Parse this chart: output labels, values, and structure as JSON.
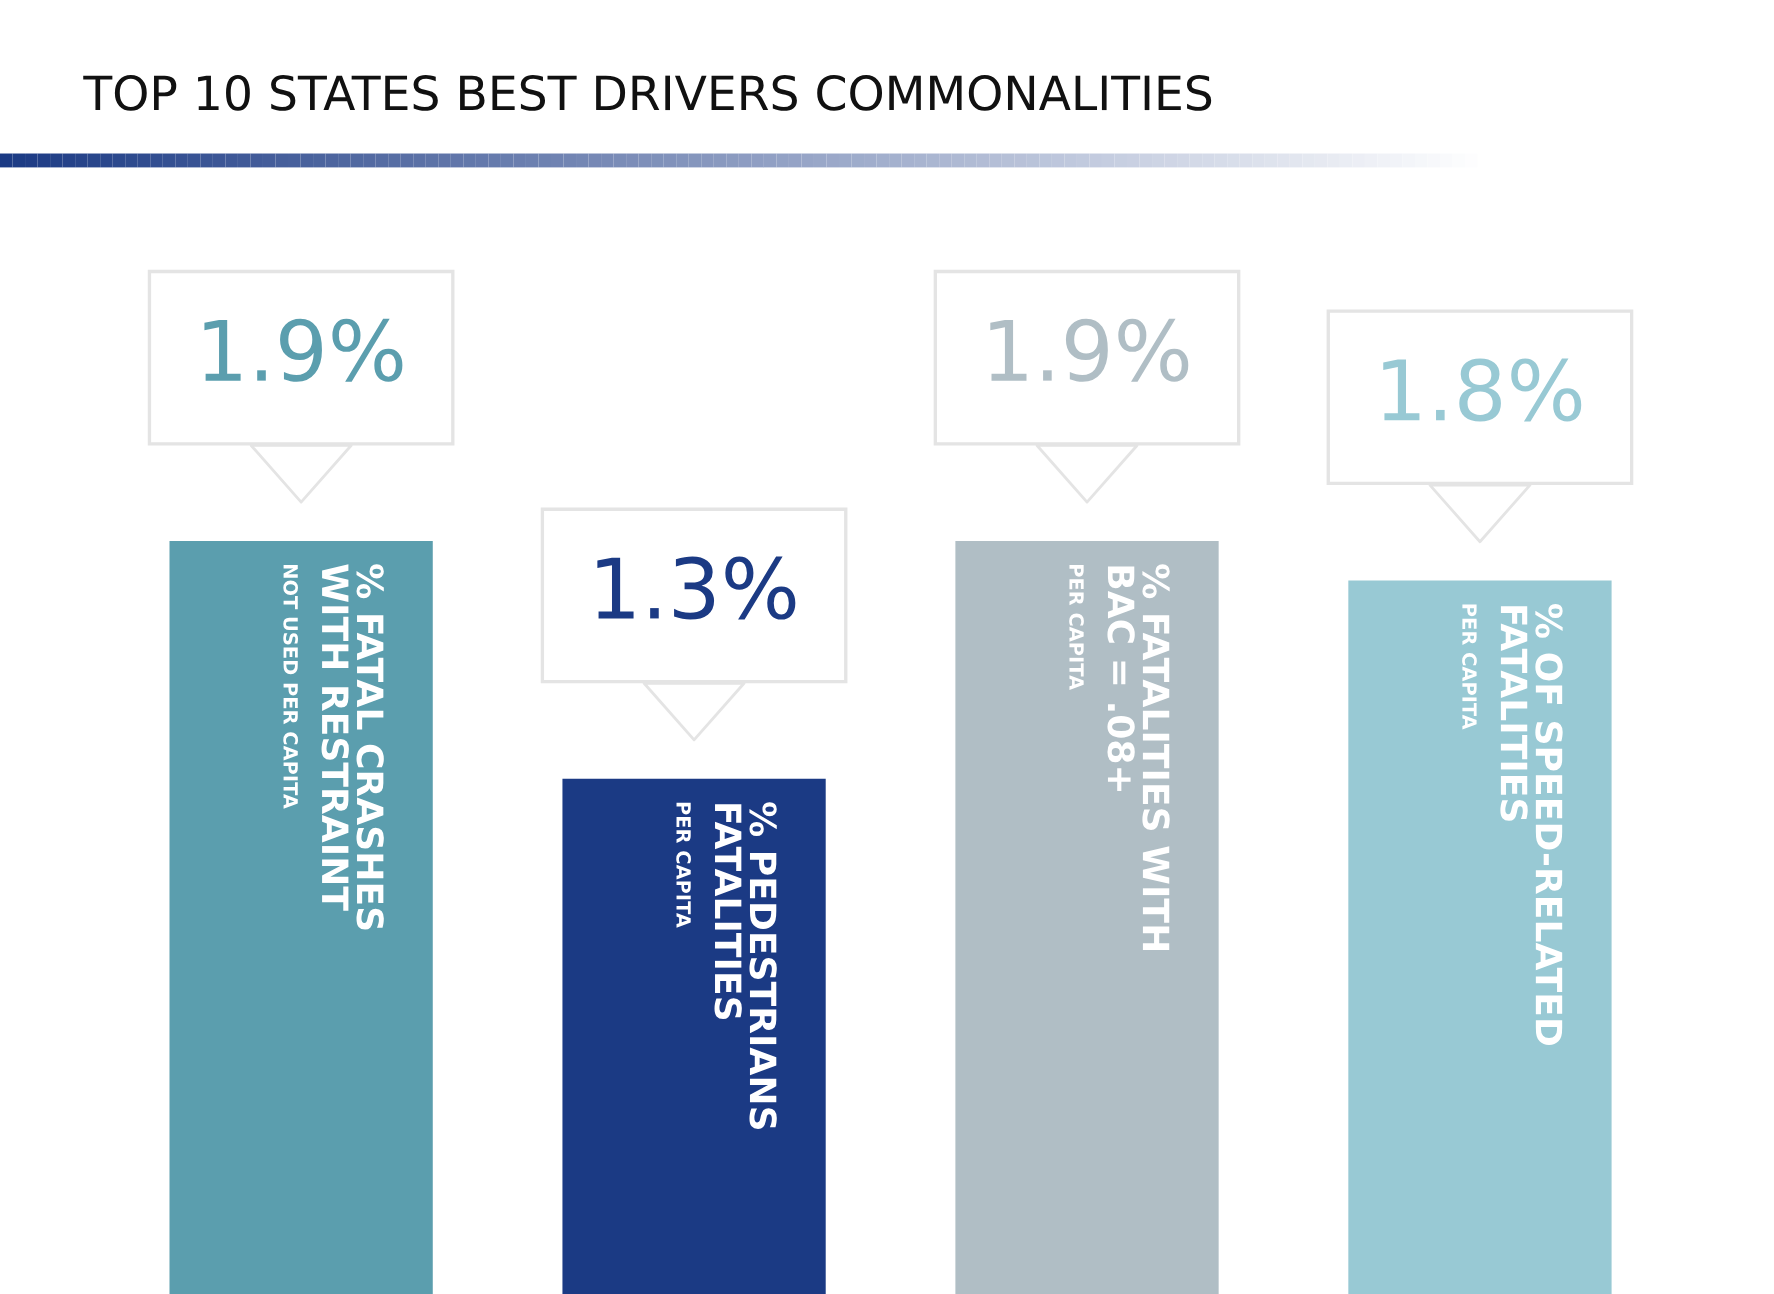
{
  "chart_data": {
    "type": "bar",
    "title": "TOP 10 STATES BEST DRIVERS COMMONALITIES",
    "categories": [
      "% FATAL CRASHES\nWITH RESTRAINT\nNOT USED PER CAPITA",
      "% PEDESTRIANS\nFATALITIES\nPER CAPITA",
      "% FATALITIES WITH\nBAC = .08+\nPER CAPITA",
      "% OF SPEED-RELATED\nFATALITIES\nPER CAPITA"
    ],
    "values": [
      1.9,
      1.3,
      1.9,
      1.8
    ],
    "value_labels": [
      "1.9%",
      "1.3%",
      "1.9%",
      "1.8%"
    ],
    "colors": [
      "#5b9eae",
      "#1b3a84",
      "#b0bec5",
      "#98c9d4"
    ],
    "legend": false
  }
}
